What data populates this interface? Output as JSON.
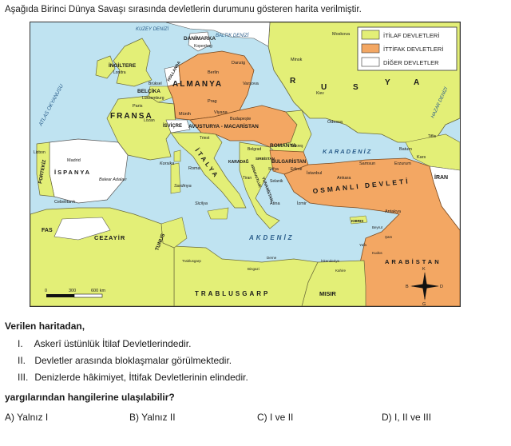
{
  "intro": "Aşağıda Birinci Dünya Savaşı sırasında devletlerin durumunu gösteren harita verilmiştir.",
  "legend": {
    "itilaf": "İTİLAF DEVLETLERİ",
    "ittifak": "İTTİFAK DEVLETLERİ",
    "diger": "DİĞER DEVLETLER"
  },
  "colors": {
    "itilaf": "#e3ef77",
    "ittifak": "#f3a763",
    "diger": "#ffffff",
    "sea": "#bfe3f1"
  },
  "map_labels": {
    "kuzey_denizi": "KUZEY DENİZİ",
    "baltik": "BALTIK DENİZİ",
    "atlas": "ATLAS OKYANUSU",
    "danimarka": "DANİMARKA",
    "kopenhag": "Kopenhag",
    "moskova": "Moskova",
    "ingiltere": "İNGİLTERE",
    "londra": "Londra",
    "hollanda": "HOLLANDA",
    "belcika": "BELÇİKA",
    "luksemburg": "Lüksemburg",
    "bruksel": "Brüksel",
    "danzig": "Danzig",
    "minsk": "Minsk",
    "berlin": "Berlin",
    "almanya": "ALMANYA",
    "varsova": "Varşova",
    "r": "R",
    "u": "U",
    "s": "S",
    "y": "Y",
    "a": "A",
    "kiev": "Kiev",
    "hazar": "HAZAR DENİZİ",
    "paris": "Paris",
    "prag": "Prag",
    "fransa": "FRANSA",
    "munih": "Münih",
    "viyana": "Viyana",
    "budapeste": "Budapeşte",
    "lozan": "Lozan",
    "isvicre": "İSVİÇRE",
    "avusturya": "AVUSTURYA - MACARİSTAN",
    "odessa": "Odessa",
    "trieste": "Triest",
    "belgrad": "Belgrad",
    "romanya": "ROMANYA",
    "bukres": "Bükreş",
    "karadeniz": "KARADENİZ",
    "tiflis": "Tiflis",
    "batum": "Batum",
    "kars": "Kars",
    "erzurum": "Erzurum",
    "iran": "İRAN",
    "portekiz": "PORTEKİZ",
    "lizbon": "Lizbon",
    "madrid": "Madrid",
    "ispanya": "İSPANYA",
    "korsika": "Korsika",
    "roma": "Roma",
    "italya": "İTALYA",
    "balear": "Balear Adaları",
    "sardinya": "Sardinya",
    "sirbistan": "SIRBİSTAN",
    "karadag": "KARADAĞ",
    "tiran": "Tiran",
    "arnavutluk": "ARNAVUTLUK",
    "bulgaristan": "BULGARİSTAN",
    "sofya": "Sofya",
    "edirne": "Edirne",
    "istanbul": "İstanbul",
    "ankara": "Ankara",
    "samsun": "Samsun",
    "osmanli": "OSMANLI DEVLETİ",
    "yunanistan": "YUNANİSTAN",
    "selanik": "Selanik",
    "izmir": "İzmir",
    "atina": "Atina",
    "antakya": "Antakya",
    "cebelitarik": "Cebelitarık",
    "sicilya": "Sicilya",
    "kibris": "KIBRIS",
    "beyrut": "Beyrut",
    "sam": "Şam",
    "yafa": "Yafa",
    "kudus": "Kudüs",
    "fas": "FAS",
    "cezayir": "CEZAYİR",
    "tunus": "TUNUS",
    "akdeniz": "AKDENİZ",
    "trablusgarp_city": "Trablusgarp",
    "bingazi": "Bingazi",
    "derne": "Derne",
    "iskenderiye": "İskenderiye",
    "kahire": "Kahire",
    "arabistan": "ARABİSTAN",
    "trablusgarp": "TRABLUSGARP",
    "misir": "MISIR",
    "compass_k": "K",
    "compass_b": "B",
    "compass_d": "D",
    "compass_g": "G",
    "scale_0": "0",
    "scale_300": "300",
    "scale_600": "600 km"
  },
  "question_lead": "Verilen haritadan,",
  "statements": [
    {
      "num": "I.",
      "text": "Askerî üstünlük İtilaf Devletlerindedir."
    },
    {
      "num": "II.",
      "text": "Devletler arasında bloklaşmalar görülmektedir."
    },
    {
      "num": "III.",
      "text": "Denizlerde hâkimiyet, İttifak Devletlerinin elindedir."
    }
  ],
  "question_end": "yargılarından hangilerine ulaşılabilir?",
  "options": [
    {
      "letter": "A)",
      "text": "Yalnız I"
    },
    {
      "letter": "B)",
      "text": "Yalnız II"
    },
    {
      "letter": "C)",
      "text": "I ve II"
    },
    {
      "letter": "D)",
      "text": "I, II ve III"
    }
  ]
}
